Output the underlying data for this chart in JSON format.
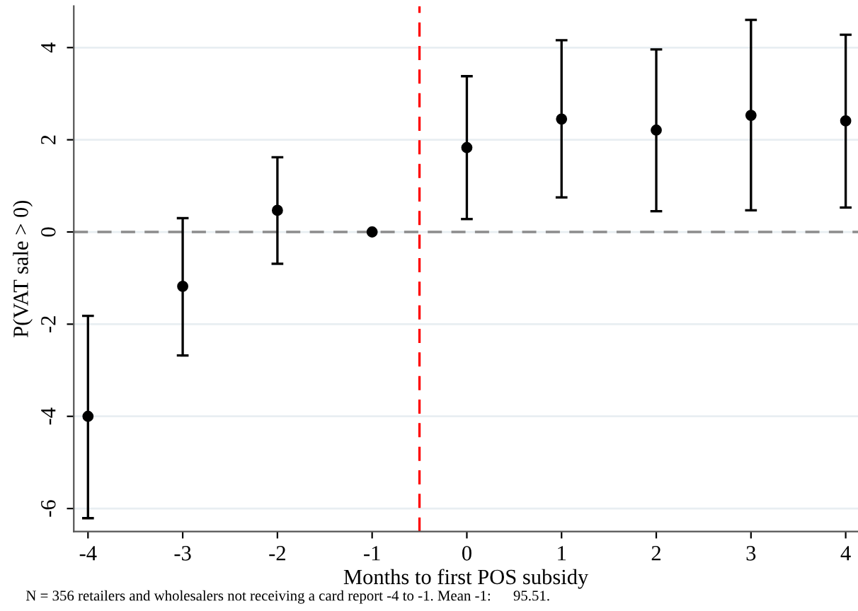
{
  "chart_data": {
    "type": "scatter",
    "xlabel": "Months to first POS subsidy",
    "ylabel": "P(VAT sale > 0)",
    "x": [
      -4,
      -3,
      -2,
      -1,
      0,
      1,
      2,
      3,
      4
    ],
    "series": [
      {
        "color": "#000000",
        "values": [
          -4.0,
          -1.18,
          0.47,
          0,
          1.83,
          2.45,
          2.21,
          2.53,
          2.41
        ],
        "errors": [
          [
            -6.21,
            -1.82
          ],
          [
            -2.68,
            0.3
          ],
          [
            -0.69,
            1.62
          ],
          null,
          [
            0.28,
            3.38
          ],
          [
            0.75,
            4.16
          ],
          [
            0.45,
            3.96
          ],
          [
            0.47,
            4.6
          ],
          [
            0.53,
            4.28
          ]
        ]
      }
    ],
    "marker": "circle",
    "xlim": [
      -4.15,
      4.13
    ],
    "ylim": [
      -6.5,
      4.9
    ],
    "xticks": [
      -4,
      -3,
      -2,
      -1,
      0,
      1,
      2,
      3,
      4
    ],
    "yticks": [
      -6,
      -4,
      -2,
      0,
      2,
      4
    ],
    "grid": "y",
    "ref_lines": [
      {
        "axis": "y",
        "value": 0,
        "color": "#8c8c8c",
        "line_style": "dashed"
      },
      {
        "axis": "x",
        "value": -0.5,
        "color": "#ff0000",
        "line_style": "dashed"
      }
    ],
    "annotations": [
      "N = 356 retailers and wholesalers not receiving a card report -4 to -1. Mean -1:      95.51."
    ]
  }
}
